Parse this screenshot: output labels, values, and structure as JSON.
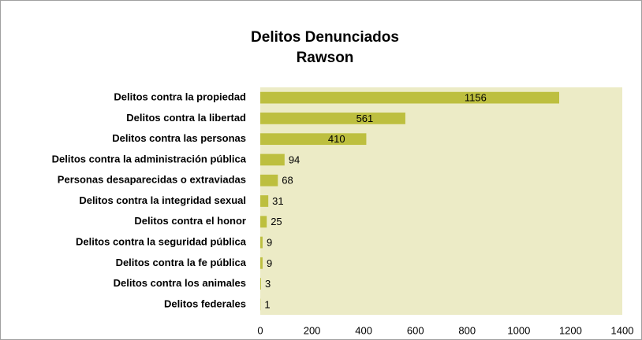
{
  "chart_data": {
    "type": "bar",
    "orientation": "horizontal",
    "title": "Delitos Denunciados",
    "subtitle": "Rawson",
    "categories": [
      "Delitos contra la propiedad",
      "Delitos contra la libertad",
      "Delitos contra las personas",
      "Delitos contra la administración pública",
      "Personas desaparecidas o extraviadas",
      "Delitos contra la integridad sexual",
      "Delitos contra el honor",
      "Delitos contra la seguridad pública",
      "Delitos contra la fe pública",
      "Delitos contra los animales",
      "Delitos federales"
    ],
    "values": [
      1156,
      561,
      410,
      94,
      68,
      31,
      25,
      9,
      9,
      3,
      1
    ],
    "color": "#bdbf3f",
    "plot_background": "#ecebc6",
    "xlim": [
      0,
      1400
    ],
    "xticks": [
      0,
      200,
      400,
      600,
      800,
      1000,
      1200,
      1400
    ]
  }
}
